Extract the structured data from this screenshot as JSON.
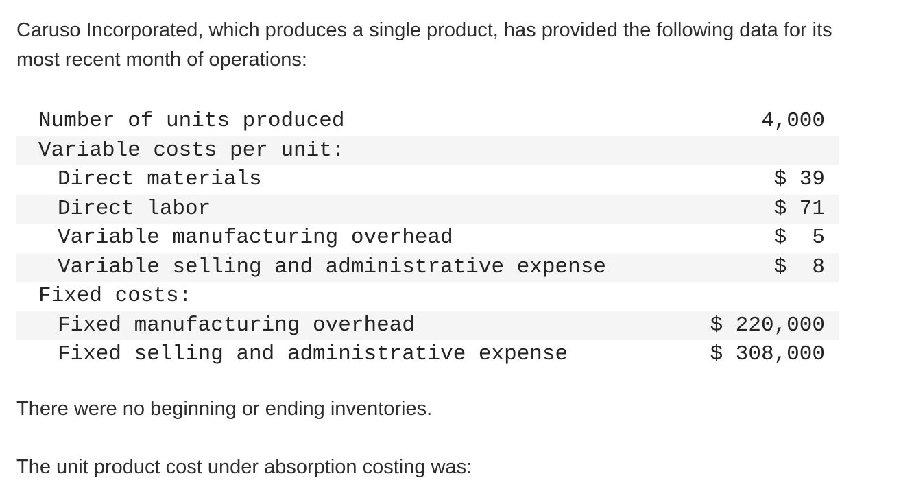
{
  "intro": "Caruso Incorporated, which produces a single product, has provided the following data for its most recent month of operations:",
  "table": {
    "rows": [
      {
        "label": "Number of units produced",
        "value": "4,000"
      },
      {
        "label": "Variable costs per unit:",
        "value": ""
      },
      {
        "label": "Direct materials",
        "value": "$ 39"
      },
      {
        "label": "Direct labor",
        "value": "$ 71"
      },
      {
        "label": "Variable manufacturing overhead",
        "value": "$  5"
      },
      {
        "label": "Variable selling and administrative expense",
        "value": "$  8"
      },
      {
        "label": "Fixed costs:",
        "value": ""
      },
      {
        "label": "Fixed manufacturing overhead",
        "value": "$ 220,000"
      },
      {
        "label": "Fixed selling and administrative expense",
        "value": "$ 308,000"
      }
    ]
  },
  "note": "There were no beginning or ending inventories.",
  "question": "The unit product cost under absorption costing was:",
  "colors": {
    "row_shade": "#f5f5f5",
    "body_text": "#2d2d2d",
    "table_text": "#242424",
    "background": "#ffffff"
  }
}
